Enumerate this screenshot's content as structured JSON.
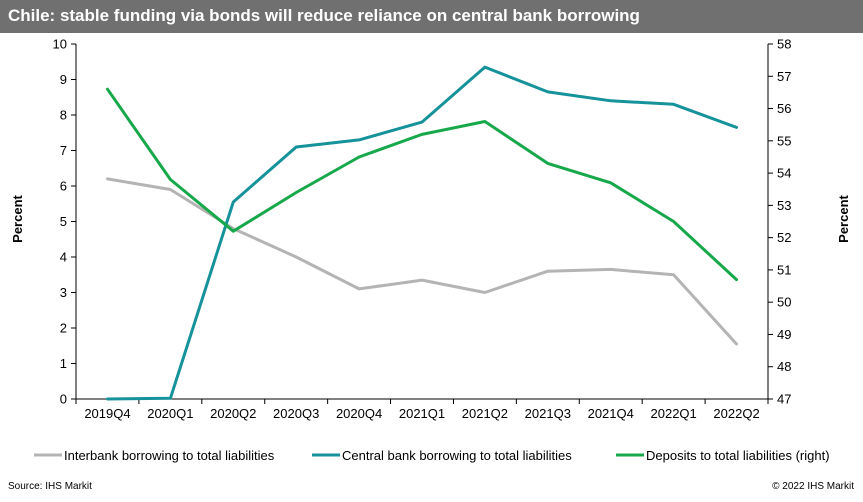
{
  "header": {
    "title": "Chile: stable funding via bonds will reduce reliance on central bank borrowing"
  },
  "footer": {
    "source": "Source: IHS Markit",
    "copyright": "© 2022 IHS Markit"
  },
  "colors": {
    "title_bg": "#707070",
    "interbank": "#b4b4b4",
    "central": "#16929a",
    "deposits": "#16a84a"
  },
  "chart_data": {
    "type": "line",
    "title": "Chile: stable funding via bonds will reduce reliance on central bank borrowing",
    "categories": [
      "2019Q4",
      "2020Q1",
      "2020Q2",
      "2020Q3",
      "2020Q4",
      "2021Q1",
      "2021Q2",
      "2021Q3",
      "2021Q4",
      "2022Q1",
      "2022Q2"
    ],
    "y_left": {
      "label": "Percent",
      "min": 0,
      "max": 10,
      "ticks": [
        "0",
        "1",
        "2",
        "3",
        "4",
        "5",
        "6",
        "7",
        "8",
        "9",
        "10"
      ]
    },
    "y_right": {
      "label": "Percent",
      "min": 47,
      "max": 58,
      "ticks": [
        "47",
        "48",
        "49",
        "50",
        "51",
        "52",
        "53",
        "54",
        "55",
        "56",
        "57",
        "58"
      ]
    },
    "grid": false,
    "legend_position": "bottom",
    "series": [
      {
        "name": "Interbank borrowing to total liabilities",
        "axis": "left",
        "color": "#b4b4b4",
        "values": [
          6.2,
          5.9,
          4.8,
          4.0,
          3.1,
          3.35,
          3.0,
          3.6,
          3.65,
          3.5,
          1.55
        ]
      },
      {
        "name": "Central bank borrowing to total liabilities",
        "axis": "left",
        "color": "#16929a",
        "values": [
          0.0,
          0.02,
          5.55,
          7.1,
          7.3,
          7.8,
          9.35,
          8.65,
          8.4,
          8.3,
          7.65
        ]
      },
      {
        "name": "Deposits to total liabilities (right)",
        "axis": "right",
        "color": "#16a84a",
        "values": [
          56.6,
          53.8,
          52.2,
          53.4,
          54.5,
          55.2,
          55.6,
          54.3,
          53.7,
          52.5,
          50.7
        ]
      }
    ]
  }
}
